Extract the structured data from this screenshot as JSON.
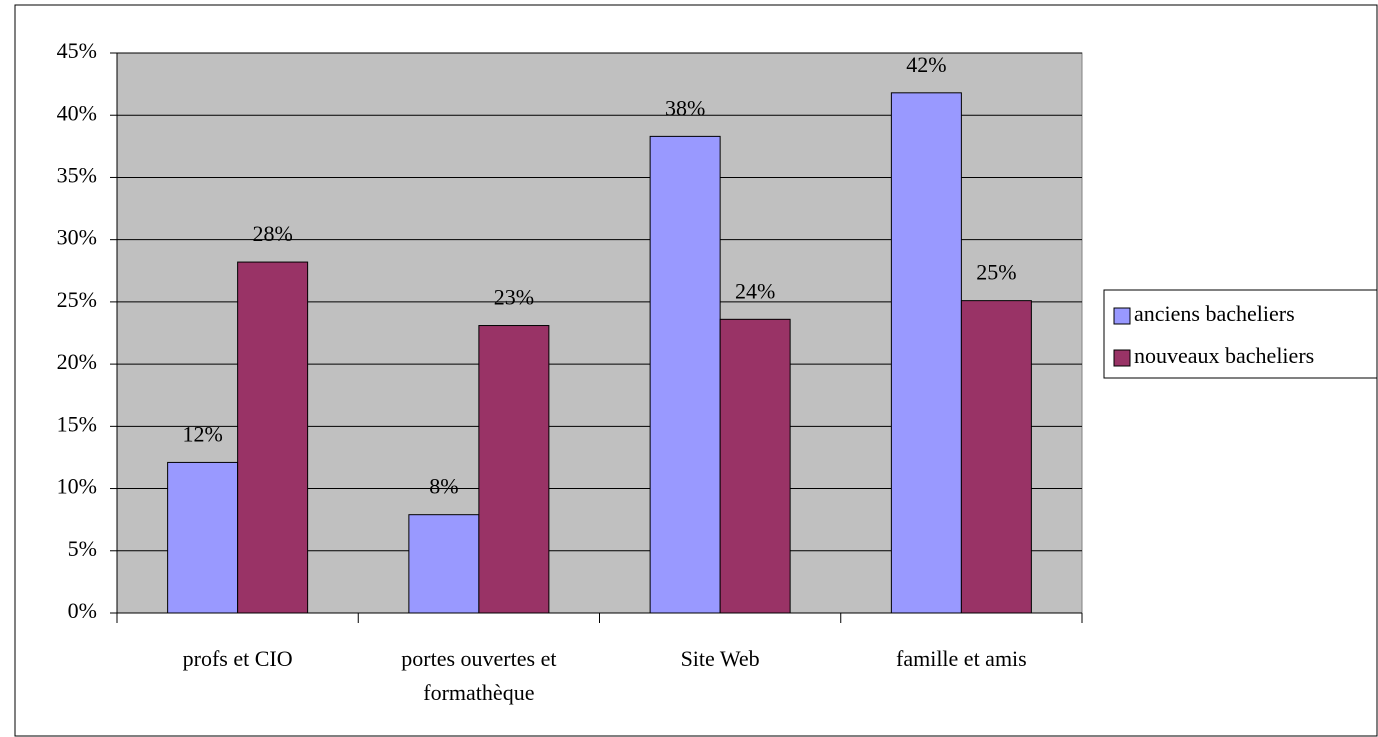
{
  "chart_data": {
    "type": "bar",
    "categories": [
      "profs et CIO",
      "portes ouvertes et formathèque",
      "Site Web",
      "famille et amis"
    ],
    "series": [
      {
        "name": "anciens bacheliers",
        "color": "#9999ff",
        "values": [
          12.1,
          7.9,
          38.3,
          41.8
        ],
        "value_labels": [
          "12%",
          "8%",
          "38%",
          "42%"
        ]
      },
      {
        "name": "nouveaux bacheliers",
        "color": "#993366",
        "values": [
          28.2,
          23.1,
          23.6,
          25.1
        ],
        "value_labels": [
          "28%",
          "23%",
          "24%",
          "25%"
        ]
      }
    ],
    "ylim": [
      0,
      45
    ],
    "yticks": [
      {
        "value": 0,
        "label": "0%"
      },
      {
        "value": 5,
        "label": "5%"
      },
      {
        "value": 10,
        "label": "10%"
      },
      {
        "value": 15,
        "label": "15%"
      },
      {
        "value": 20,
        "label": "20%"
      },
      {
        "value": 25,
        "label": "25%"
      },
      {
        "value": 30,
        "label": "30%"
      },
      {
        "value": 35,
        "label": "35%"
      },
      {
        "value": 40,
        "label": "40%"
      },
      {
        "value": 45,
        "label": "45%"
      }
    ],
    "grid": true,
    "plot_background": "#c0c0c0",
    "legend": "right"
  }
}
